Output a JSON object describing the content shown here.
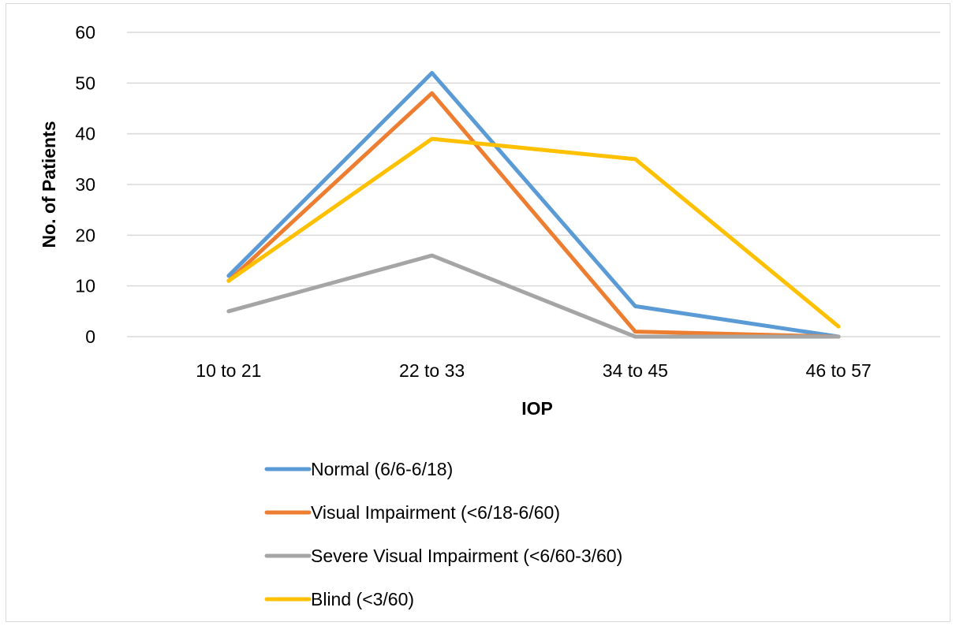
{
  "chart_data": {
    "type": "line",
    "categories": [
      "10 to 21",
      "22 to 33",
      "34 to 45",
      "46 to 57"
    ],
    "series": [
      {
        "name": "Normal (6/6-6/18)",
        "values": [
          12,
          52,
          6,
          0
        ],
        "color": "#5B9BD5"
      },
      {
        "name": "Visual Impairment (<6/18-6/60)",
        "values": [
          11,
          48,
          1,
          0
        ],
        "color": "#ED7D31"
      },
      {
        "name": "Severe Visual Impairment (<6/60-3/60)",
        "values": [
          5,
          16,
          0,
          0
        ],
        "color": "#A5A5A5"
      },
      {
        "name": "Blind (<3/60)",
        "values": [
          11,
          39,
          35,
          2
        ],
        "color": "#FFC000"
      }
    ],
    "title": "",
    "xlabel": "IOP",
    "ylabel": "No. of Patients",
    "ylim": [
      0,
      60
    ],
    "yticks": [
      0,
      10,
      20,
      30,
      40,
      50,
      60
    ],
    "grid": true,
    "gridColor": "#d9d9d9",
    "legend_position": "bottom"
  }
}
